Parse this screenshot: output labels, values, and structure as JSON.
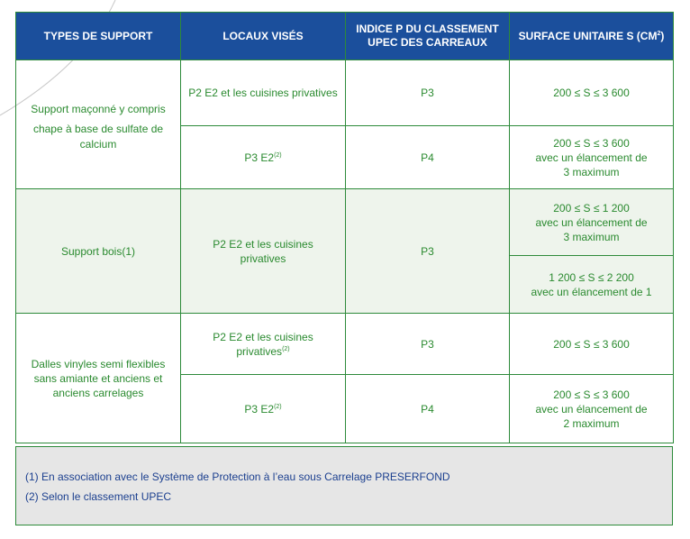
{
  "header": {
    "col1": "TYPES DE SUPPORT",
    "col2": "LOCAUX VISÉS",
    "col3_line1": "INDICE P DU CLASSEMENT",
    "col3_line2": "UPEC DES CARREAUX",
    "col4": "SURFACE UNITAIRE S (CM",
    "col4_sup": "2",
    "col4_end": ")"
  },
  "groups": [
    {
      "support": "Support maçonné y compris chape à base de sulfate de calcium",
      "support_line1": "Support maçonné y compris",
      "support_line2": "chape à base de sulfate de",
      "support_line3": "calcium",
      "rows": [
        {
          "locaux": "P2 E2 et les cuisines privatives",
          "indice": "P3",
          "surface_line1": "200 ≤ S ≤ 3 600"
        },
        {
          "locaux": "P3 E2",
          "locaux_sup": "(2)",
          "indice": "P4",
          "surface_line1": "200 ≤ S ≤ 3 600",
          "surface_line2": "avec un élancement de",
          "surface_line3": "3 maximum"
        }
      ]
    },
    {
      "support": "Support bois(1)",
      "locaux_line1": "P2 E2 et les cuisines",
      "locaux_line2": "privatives",
      "indice": "P3",
      "rows": [
        {
          "surface_line1": "200 ≤ S ≤ 1 200",
          "surface_line2": "avec un élancement de",
          "surface_line3": "3 maximum"
        },
        {
          "surface_line1": "1 200 ≤ S ≤ 2 200",
          "surface_line2": "avec un élancement de 1"
        }
      ]
    },
    {
      "support_line1": "Dalles vinyles semi flexibles",
      "support_line2": "sans amiante et anciens et",
      "support_line3": "anciens carrelages",
      "rows": [
        {
          "locaux_line1": "P2 E2 et les cuisines",
          "locaux_line2": "privatives",
          "locaux_sup": "(2)",
          "indice": "P3",
          "surface_line1": "200 ≤ S ≤ 3 600"
        },
        {
          "locaux": "P3 E2",
          "locaux_sup": "(2)",
          "indice": "P4",
          "surface_line1": "200 ≤ S ≤ 3 600",
          "surface_line2": "avec un élancement de",
          "surface_line3": "2 maximum"
        }
      ]
    }
  ],
  "footnotes": [
    "(1) En association avec le Système de Protection à l’eau sous Carrelage PRESERFOND",
    "(2) Selon le classement UPEC"
  ],
  "colors": {
    "header_bg": "#1b4f9c",
    "text_green": "#2a8a2f",
    "border_green": "#2d8a3a",
    "shade": "#eef4ec",
    "footnote_bg": "#e6e6e6",
    "footnote_text": "#1b3f8f"
  }
}
